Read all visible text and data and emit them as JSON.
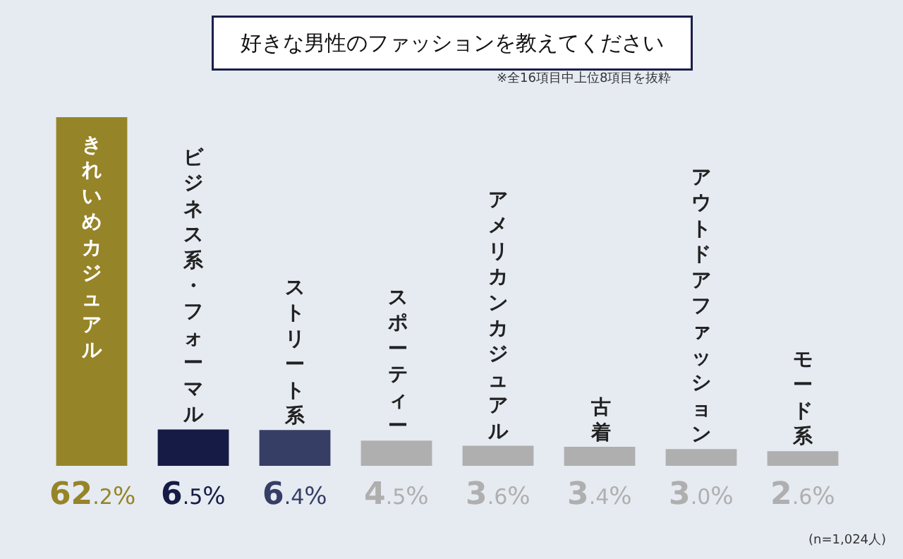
{
  "chart_data": {
    "type": "bar",
    "title": "好きな男性のファッションを教えてください",
    "annotations": [
      "※全16項目中上位8項目を抜粋",
      "(n=1,024人)"
    ],
    "categories": [
      "きれいめカジュアル",
      "ビジネス系・フォーマル",
      "ストリート系",
      "スポーティー",
      "アメリカンカジュアル",
      "古着",
      "アウトドアファッション",
      "モード系"
    ],
    "values": [
      62.2,
      6.5,
      6.4,
      4.5,
      3.6,
      3.4,
      3.0,
      2.6
    ],
    "colors": [
      "#968428",
      "#161b45",
      "#363e66",
      "#afafaf",
      "#afafaf",
      "#afafaf",
      "#afafaf",
      "#afafaf"
    ],
    "value_labels": [
      "62.2%",
      "6.5%",
      "6.4%",
      "4.5%",
      "3.6%",
      "3.4%",
      "3.0%",
      "2.6%"
    ]
  }
}
